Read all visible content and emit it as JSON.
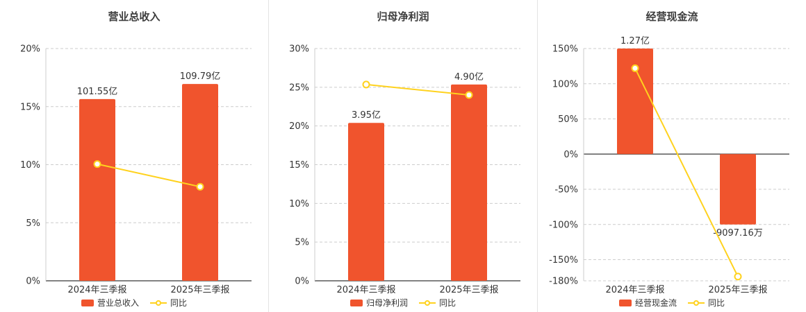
{
  "colors": {
    "bar": "#f0542d",
    "line": "#ffd21e",
    "marker_fill": "#ffffff",
    "grid": "#cccccc",
    "axis_line": "#595959",
    "left_axis": "#cccccc",
    "text": "#333333",
    "title": "#3d3d3d",
    "divider": "#e4e4e4"
  },
  "chart_data": [
    {
      "type": "bar",
      "title": "营业总收入",
      "categories": [
        "2024年三季报",
        "2025年三季报"
      ],
      "bar_series": {
        "name": "营业总收入",
        "labels": [
          "101.55亿",
          "109.79亿"
        ],
        "plotted_pct": [
          15.65,
          16.95
        ]
      },
      "line_series": {
        "name": "同比",
        "values_pct": [
          10.05,
          8.1
        ]
      },
      "ylim": [
        0,
        20
      ],
      "yticks": [
        "0%",
        "5%",
        "10%",
        "15%",
        "20%"
      ],
      "ytick_values": [
        0,
        5,
        10,
        15,
        20
      ],
      "grid": "dashed-horizontal",
      "legend_position": "bottom"
    },
    {
      "type": "bar",
      "title": "归母净利润",
      "categories": [
        "2024年三季报",
        "2025年三季报"
      ],
      "bar_series": {
        "name": "归母净利润",
        "labels": [
          "3.95亿",
          "4.90亿"
        ],
        "plotted_pct": [
          20.4,
          25.35
        ]
      },
      "line_series": {
        "name": "同比",
        "values_pct": [
          25.35,
          24.0
        ]
      },
      "ylim": [
        0,
        30
      ],
      "yticks": [
        "0%",
        "5%",
        "10%",
        "15%",
        "20%",
        "25%",
        "30%"
      ],
      "ytick_values": [
        0,
        5,
        10,
        15,
        20,
        25,
        30
      ],
      "grid": "dashed-horizontal",
      "legend_position": "bottom"
    },
    {
      "type": "bar",
      "title": "经营现金流",
      "categories": [
        "2024年三季报",
        "2025年三季报"
      ],
      "bar_series": {
        "name": "经营现金流",
        "labels": [
          "1.27亿",
          "-9097.16万"
        ],
        "plotted_pct": [
          150,
          -100
        ]
      },
      "line_series": {
        "name": "同比",
        "values_pct": [
          122,
          -174
        ]
      },
      "ylim": [
        -180,
        150
      ],
      "yticks": [
        "150%",
        "100%",
        "50%",
        "0%",
        "-50%",
        "-100%",
        "-150%",
        "-180%"
      ],
      "ytick_values": [
        150,
        100,
        50,
        0,
        -50,
        -100,
        -150,
        -180
      ],
      "grid": "dashed-horizontal",
      "legend_position": "bottom"
    }
  ]
}
